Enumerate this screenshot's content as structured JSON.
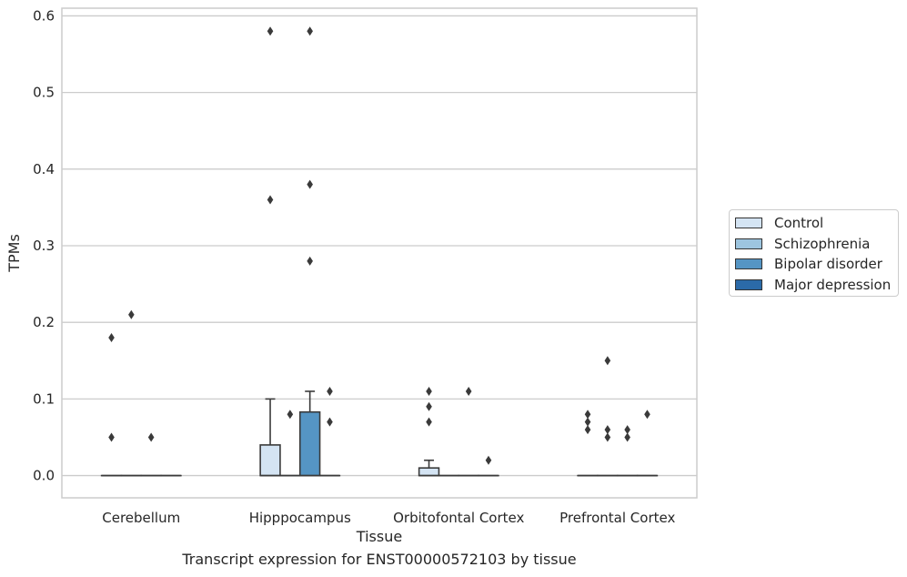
{
  "chart_data": {
    "type": "box",
    "title": "",
    "caption": "Transcript expression for ENST00000572103 by tissue",
    "xlabel": "Tissue",
    "ylabel": "TPMs",
    "ylim": [
      -0.029,
      0.61
    ],
    "yticks": [
      "0.0",
      "0.1",
      "0.2",
      "0.3",
      "0.4",
      "0.5",
      "0.6"
    ],
    "categories": [
      "Cerebellum",
      "Hipppocampus",
      "Orbitofontal Cortex",
      "Prefrontal Cortex"
    ],
    "grid": "horizontal",
    "legend_position": "right",
    "series": [
      {
        "name": "Control",
        "color": "#d4e4f3",
        "boxes": [
          {
            "q1": 0,
            "median": 0,
            "q3": 0,
            "whisker_low": 0,
            "whisker_high": 0,
            "outliers": [
              0.18,
              0.05
            ]
          },
          {
            "q1": 0,
            "median": 0,
            "q3": 0.04,
            "whisker_low": 0,
            "whisker_high": 0.1,
            "outliers": [
              0.58,
              0.36
            ]
          },
          {
            "q1": 0,
            "median": 0,
            "q3": 0.01,
            "whisker_low": 0,
            "whisker_high": 0.02,
            "outliers": [
              0.11,
              0.09,
              0.07
            ]
          },
          {
            "q1": 0,
            "median": 0,
            "q3": 0,
            "whisker_low": 0,
            "whisker_high": 0,
            "outliers": [
              0.08,
              0.07,
              0.06
            ]
          }
        ]
      },
      {
        "name": "Schizophrenia",
        "color": "#9dc5df",
        "boxes": [
          {
            "q1": 0,
            "median": 0,
            "q3": 0,
            "whisker_low": 0,
            "whisker_high": 0,
            "outliers": [
              0.21
            ]
          },
          {
            "q1": 0,
            "median": 0,
            "q3": 0,
            "whisker_low": 0,
            "whisker_high": 0,
            "outliers": [
              0.08
            ]
          },
          {
            "q1": 0,
            "median": 0,
            "q3": 0,
            "whisker_low": 0,
            "whisker_high": 0,
            "outliers": []
          },
          {
            "q1": 0,
            "median": 0,
            "q3": 0,
            "whisker_low": 0,
            "whisker_high": 0,
            "outliers": [
              0.15,
              0.06,
              0.05
            ]
          }
        ]
      },
      {
        "name": "Bipolar disorder",
        "color": "#5595c4",
        "boxes": [
          {
            "q1": 0,
            "median": 0,
            "q3": 0,
            "whisker_low": 0,
            "whisker_high": 0,
            "outliers": [
              0.05
            ]
          },
          {
            "q1": 0,
            "median": 0,
            "q3": 0.083,
            "whisker_low": 0,
            "whisker_high": 0.11,
            "outliers": [
              0.58,
              0.38,
              0.28
            ]
          },
          {
            "q1": 0,
            "median": 0,
            "q3": 0,
            "whisker_low": 0,
            "whisker_high": 0,
            "outliers": [
              0.11
            ]
          },
          {
            "q1": 0,
            "median": 0,
            "q3": 0,
            "whisker_low": 0,
            "whisker_high": 0,
            "outliers": [
              0.06,
              0.05
            ]
          }
        ]
      },
      {
        "name": "Major depression",
        "color": "#2b6aa8",
        "boxes": [
          {
            "q1": 0,
            "median": 0,
            "q3": 0,
            "whisker_low": 0,
            "whisker_high": 0,
            "outliers": []
          },
          {
            "q1": 0,
            "median": 0,
            "q3": 0,
            "whisker_low": 0,
            "whisker_high": 0,
            "outliers": [
              0.11,
              0.07
            ]
          },
          {
            "q1": 0,
            "median": 0,
            "q3": 0,
            "whisker_low": 0,
            "whisker_high": 0,
            "outliers": [
              0.02
            ]
          },
          {
            "q1": 0,
            "median": 0,
            "q3": 0,
            "whisker_low": 0,
            "whisker_high": 0,
            "outliers": [
              0.08
            ]
          }
        ]
      }
    ]
  }
}
